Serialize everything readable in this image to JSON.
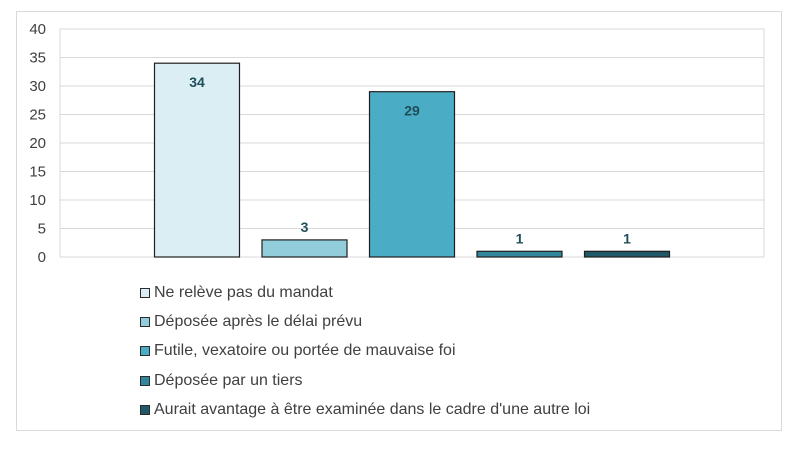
{
  "chart_data": {
    "type": "bar",
    "categories": [
      "Ne relève pas du mandat",
      "Déposée après le délai prévu",
      "Futile, vexatoire ou portée de mauvaise foi",
      "Déposée par un tiers",
      "Aurait avantage à être examinée dans le cadre d'une autre loi"
    ],
    "values": [
      34,
      3,
      29,
      1,
      1
    ],
    "colors": [
      "#daeef3",
      "#92cddc",
      "#4bacc6",
      "#31859c",
      "#215968"
    ],
    "ylim": [
      0,
      40
    ],
    "yticks": [
      0,
      5,
      10,
      15,
      20,
      25,
      30,
      35,
      40
    ],
    "grid": true,
    "legend_position": "bottom",
    "title": "",
    "xlabel": "",
    "ylabel": ""
  }
}
